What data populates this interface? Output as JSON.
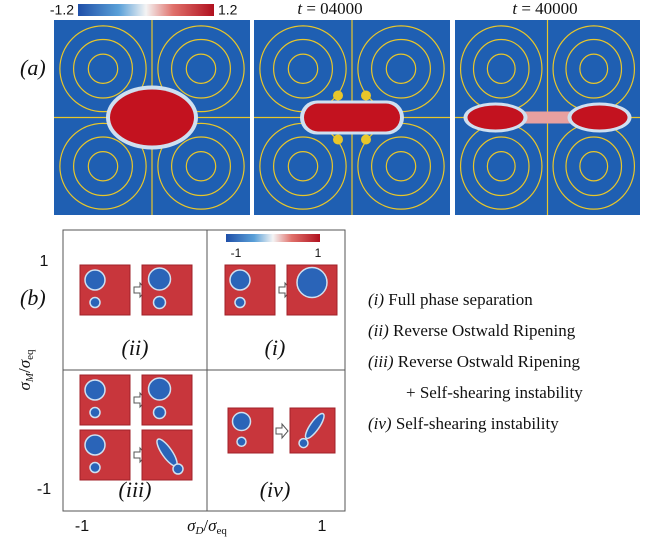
{
  "panel_a": {
    "label": "(a)",
    "colorbar": {
      "min": "-1.2",
      "max": "1.2"
    },
    "frames": [
      {
        "var": "t",
        "value": "04000"
      },
      {
        "var": "t",
        "value": "40000"
      }
    ]
  },
  "panel_b": {
    "label": "(b)",
    "y_axis": {
      "numerator": {
        "base": "σ",
        "sub": "M"
      },
      "denominator": {
        "base": "σ",
        "sub": "eq"
      },
      "ticks": [
        "1",
        "-1"
      ]
    },
    "x_axis": {
      "numerator": {
        "base": "σ",
        "sub": "D"
      },
      "denominator": {
        "base": "σ",
        "sub": "eq"
      },
      "ticks": [
        "-1",
        "1"
      ]
    },
    "colorbar": {
      "min": "-1",
      "max": "1"
    },
    "quadrants": [
      "(ii)",
      "(i)",
      "(iii)",
      "(iv)"
    ],
    "legend": [
      {
        "tag": "(i)",
        "lines": [
          "Full phase separation"
        ]
      },
      {
        "tag": "(ii)",
        "lines": [
          "Reverse Ostwald Ripening"
        ]
      },
      {
        "tag": "(iii)",
        "lines": [
          "Reverse Ostwald Ripening",
          "+ Self-shearing instability"
        ]
      },
      {
        "tag": "(iv)",
        "lines": [
          "Self-shearing instability"
        ]
      }
    ]
  }
}
